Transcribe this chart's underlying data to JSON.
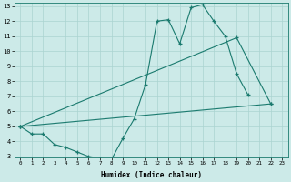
{
  "xlabel": "Humidex (Indice chaleur)",
  "bg_color": "#cceae8",
  "grid_color": "#aad4d0",
  "line_color": "#1a7a6e",
  "line1_x": [
    0,
    1,
    2,
    3,
    4,
    5,
    6,
    7,
    8,
    9,
    10,
    11,
    12,
    13,
    14,
    15,
    16,
    17,
    18,
    19,
    20
  ],
  "line1_y": [
    5.0,
    4.5,
    4.5,
    3.8,
    3.6,
    3.3,
    3.0,
    2.9,
    2.8,
    4.2,
    5.5,
    7.8,
    12.0,
    12.1,
    10.5,
    12.9,
    13.1,
    12.0,
    11.0,
    8.5,
    7.1
  ],
  "line2_x": [
    0,
    22
  ],
  "line2_y": [
    5.0,
    6.5
  ],
  "line3_x": [
    0,
    19,
    22
  ],
  "line3_y": [
    5.0,
    10.9,
    6.5
  ],
  "ylim": [
    3,
    13
  ],
  "xlim": [
    -0.5,
    23.5
  ],
  "yticks": [
    3,
    4,
    5,
    6,
    7,
    8,
    9,
    10,
    11,
    12,
    13
  ],
  "xticks": [
    0,
    1,
    2,
    3,
    4,
    5,
    6,
    7,
    8,
    9,
    10,
    11,
    12,
    13,
    14,
    15,
    16,
    17,
    18,
    19,
    20,
    21,
    22,
    23
  ]
}
